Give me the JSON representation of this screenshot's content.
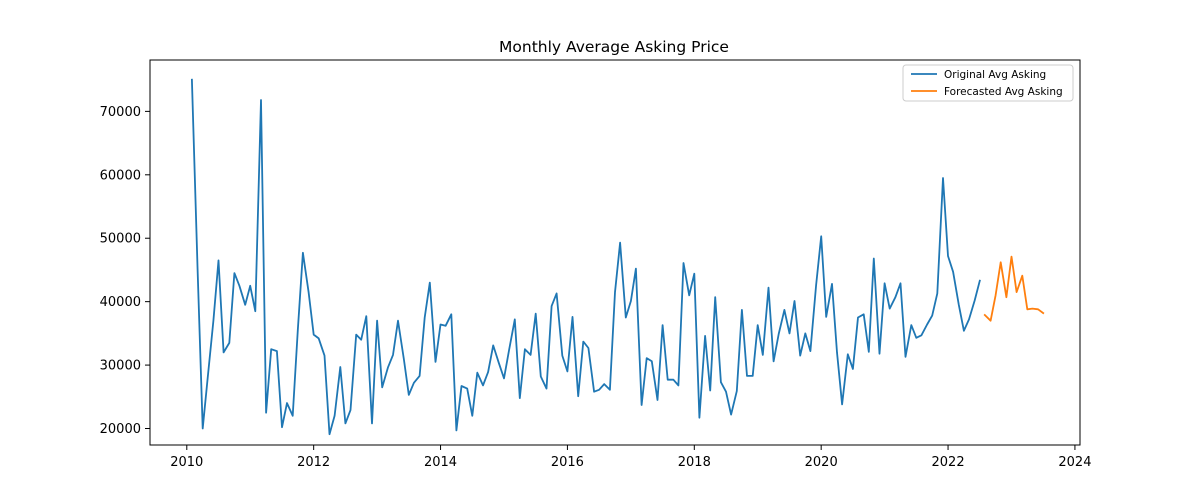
{
  "chart_data": {
    "type": "line",
    "title": "Monthly Average Asking Price",
    "xlabel": "",
    "ylabel": "",
    "xlim": [
      2009.42,
      2024.08
    ],
    "ylim": [
      17400,
      78100
    ],
    "x_ticks": [
      2010,
      2012,
      2014,
      2016,
      2018,
      2020,
      2022,
      2024
    ],
    "y_ticks": [
      20000,
      30000,
      40000,
      50000,
      60000,
      70000
    ],
    "grid": false,
    "legend_position": "top-right",
    "series": [
      {
        "name": "Original Avg Asking",
        "color": "#1f77b4",
        "x": [
          2010.08,
          2010.17,
          2010.25,
          2010.33,
          2010.42,
          2010.5,
          2010.58,
          2010.67,
          2010.75,
          2010.83,
          2010.92,
          2011.0,
          2011.08,
          2011.17,
          2011.25,
          2011.33,
          2011.42,
          2011.5,
          2011.58,
          2011.67,
          2011.75,
          2011.83,
          2011.92,
          2012.0,
          2012.08,
          2012.17,
          2012.25,
          2012.33,
          2012.42,
          2012.5,
          2012.58,
          2012.67,
          2012.75,
          2012.83,
          2012.92,
          2013.0,
          2013.08,
          2013.17,
          2013.25,
          2013.33,
          2013.42,
          2013.5,
          2013.58,
          2013.67,
          2013.75,
          2013.83,
          2013.92,
          2014.0,
          2014.08,
          2014.17,
          2014.25,
          2014.33,
          2014.42,
          2014.5,
          2014.58,
          2014.67,
          2014.75,
          2014.83,
          2014.92,
          2015.0,
          2015.08,
          2015.17,
          2015.25,
          2015.33,
          2015.42,
          2015.5,
          2015.58,
          2015.67,
          2015.75,
          2015.83,
          2015.92,
          2016.0,
          2016.08,
          2016.17,
          2016.25,
          2016.33,
          2016.42,
          2016.5,
          2016.58,
          2016.67,
          2016.75,
          2016.83,
          2016.92,
          2017.0,
          2017.08,
          2017.17,
          2017.25,
          2017.33,
          2017.42,
          2017.5,
          2017.58,
          2017.67,
          2017.75,
          2017.83,
          2017.92,
          2018.0,
          2018.08,
          2018.17,
          2018.25,
          2018.33,
          2018.42,
          2018.5,
          2018.58,
          2018.67,
          2018.75,
          2018.83,
          2018.92,
          2019.0,
          2019.08,
          2019.17,
          2019.25,
          2019.33,
          2019.42,
          2019.5,
          2019.58,
          2019.67,
          2019.75,
          2019.83,
          2019.92,
          2020.0,
          2020.08,
          2020.17,
          2020.25,
          2020.33,
          2020.42,
          2020.5,
          2020.58,
          2020.67,
          2020.75,
          2020.83,
          2020.92,
          2021.0,
          2021.08,
          2021.17,
          2021.25,
          2021.33,
          2021.42,
          2021.5,
          2021.58,
          2021.67,
          2021.75,
          2021.83,
          2021.92,
          2022.0,
          2022.08,
          2022.17,
          2022.25,
          2022.33,
          2022.42,
          2022.5
        ],
        "values": [
          75000,
          45000,
          20000,
          28000,
          37000,
          46500,
          32000,
          33500,
          44500,
          42500,
          39500,
          42500,
          38500,
          71800,
          22500,
          32500,
          32200,
          20200,
          24000,
          22000,
          35500,
          47700,
          41500,
          34800,
          34200,
          31500,
          19100,
          22000,
          29700,
          20800,
          22900,
          34800,
          34000,
          37700,
          20800,
          37000,
          26500,
          29600,
          31600,
          37000,
          31000,
          25300,
          27200,
          28300,
          37500,
          43000,
          30500,
          36400,
          36200,
          38000,
          19700,
          26700,
          26300,
          22000,
          28800,
          26800,
          28900,
          33100,
          30300,
          27900,
          32400,
          37200,
          24800,
          32500,
          31600,
          38100,
          28200,
          26300,
          39300,
          41300,
          31500,
          29000,
          37600,
          25100,
          33700,
          32700,
          25800,
          26100,
          27000,
          26100,
          41500,
          49300,
          37500,
          40100,
          45200,
          23700,
          31100,
          30600,
          24500,
          36300,
          27700,
          27700,
          26800,
          46100,
          41000,
          44400,
          21700,
          34600,
          26000,
          40700,
          27300,
          25800,
          22200,
          25900,
          38700,
          28300,
          28300,
          36300,
          31600,
          42200,
          30600,
          34900,
          38700,
          35000,
          40100,
          31500,
          35000,
          32200,
          42600,
          50300,
          37600,
          42800,
          32000,
          23800,
          31700,
          29400,
          37500,
          38000,
          32100,
          46800,
          31800,
          42900,
          38900,
          40700,
          42900,
          31300,
          36300,
          34300,
          34700,
          36400,
          37800,
          41300,
          59500,
          47200,
          44700,
          39500,
          35400,
          37200,
          40200,
          43300
        ]
      },
      {
        "name": "Forecasted Avg Asking",
        "color": "#ff7f0e",
        "x": [
          2022.58,
          2022.67,
          2022.75,
          2022.83,
          2022.92,
          2023.0,
          2023.08,
          2023.17,
          2023.25,
          2023.33,
          2023.42,
          2023.5
        ],
        "values": [
          37900,
          37000,
          41000,
          46200,
          40700,
          47100,
          41500,
          44100,
          38800,
          38900,
          38800,
          38200
        ]
      }
    ]
  }
}
